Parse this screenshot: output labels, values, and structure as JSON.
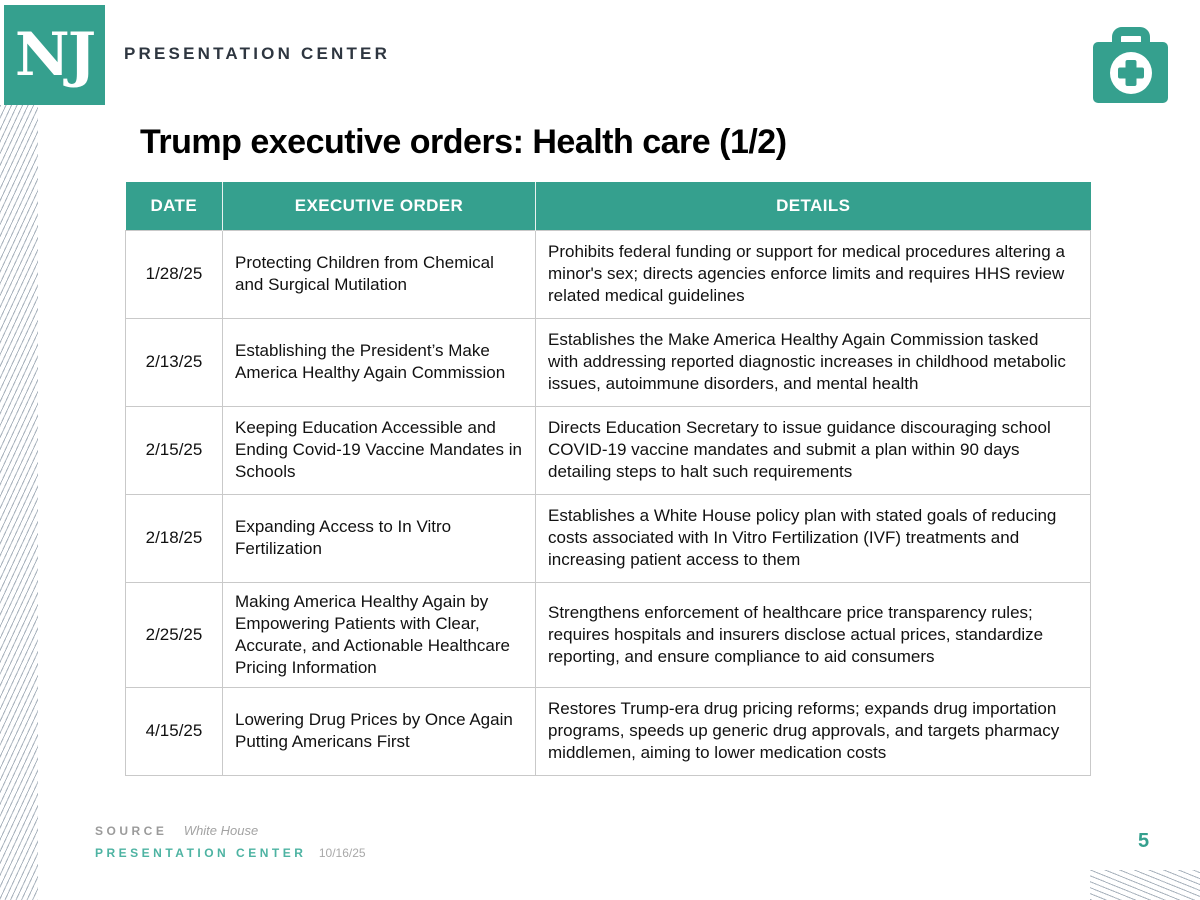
{
  "brand": {
    "logo_text": "NJ",
    "header_text": "PRESENTATION CENTER"
  },
  "slide": {
    "title": "Trump executive orders: Health care (1/2)",
    "page_number": "5"
  },
  "table": {
    "headers": [
      "DATE",
      "EXECUTIVE ORDER",
      "DETAILS"
    ],
    "rows": [
      {
        "date": "1/28/25",
        "order": "Protecting Children from Chemical and Surgical Mutilation",
        "details": "Prohibits federal funding or support for medical procedures altering a minor's sex; directs agencies enforce limits and requires HHS review related medical guidelines"
      },
      {
        "date": "2/13/25",
        "order": "Establishing the President’s Make America Healthy Again Commission",
        "details": "Establishes the Make America Healthy Again Commission tasked with addressing reported diagnostic increases in childhood metabolic issues, autoimmune disorders, and mental health"
      },
      {
        "date": "2/15/25",
        "order": "Keeping Education Accessible and Ending Covid-19 Vaccine Mandates in Schools",
        "details": "Directs Education Secretary to issue guidance discouraging school COVID-19 vaccine mandates and submit a plan within 90 days detailing steps to halt such requirements"
      },
      {
        "date": "2/18/25",
        "order": "Expanding Access to In Vitro Fertilization",
        "details": "Establishes a White House policy plan with stated goals of reducing costs associated with In Vitro Fertilization (IVF) treatments and increasing patient access to them"
      },
      {
        "date": "2/25/25",
        "order": "Making America Healthy Again by Empowering Patients with Clear, Accurate, and Actionable Healthcare Pricing Information",
        "details": "Strengthens enforcement of healthcare price transparency rules; requires hospitals and insurers disclose actual prices, standardize reporting, and ensure compliance to aid consumers"
      },
      {
        "date": "4/15/25",
        "order": "Lowering Drug Prices by Once Again Putting Americans First",
        "details": "Restores Trump-era drug pricing reforms; expands drug importation programs, speeds up generic drug approvals, and targets pharmacy middlemen, aiming to lower medication costs"
      }
    ]
  },
  "footer": {
    "source_label": "SOURCE",
    "source_value": "White House",
    "brand_label": "PRESENTATION CENTER",
    "date": "10/16/25"
  },
  "colors": {
    "teal_accent": "#35a08e",
    "footer_teal": "#4db3a2",
    "header_text": "#2e3640",
    "table_border": "#c9c9c9",
    "footer_gray": "#9b9b9b",
    "stripe_gray": "#a9b3bd"
  }
}
